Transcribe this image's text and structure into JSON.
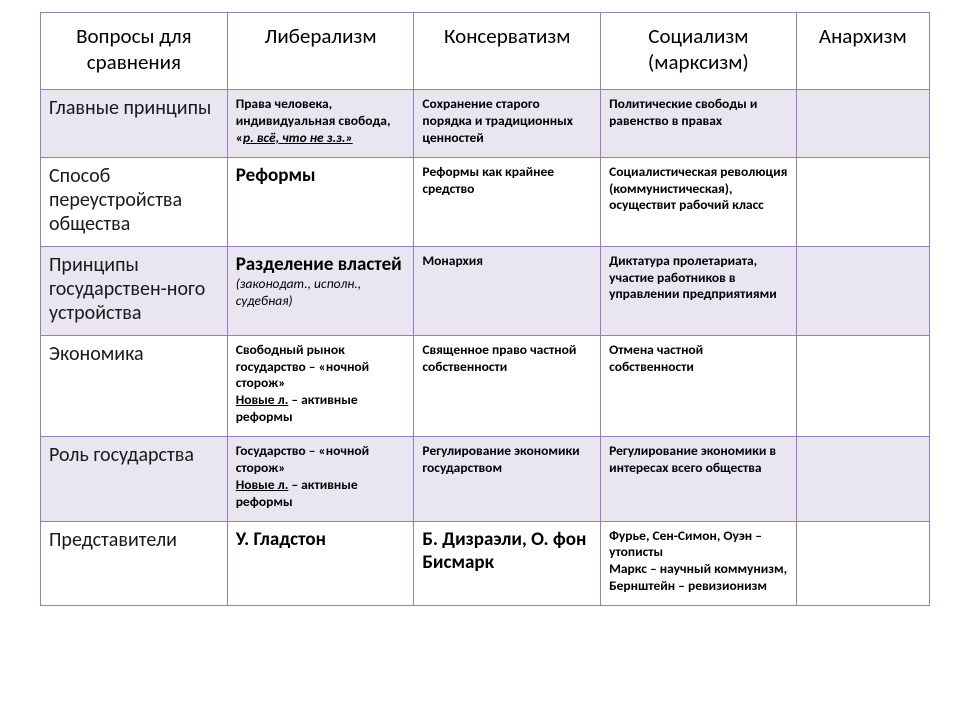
{
  "table": {
    "type": "table",
    "columns": [
      "Вопросы для сравнения",
      "Либерализм",
      "Консерватизм",
      "Социализм (марксизм)",
      "Анархизм"
    ],
    "column_widths_pct": [
      21,
      21,
      21,
      22,
      15
    ],
    "border_color": "#8f82b8",
    "band_color": "#e9e5f1",
    "background_color": "#ffffff",
    "header_fontsize": 21,
    "rowheader_fontsize": 20,
    "cell_fontsize": 13.5,
    "big_fontsize": 19,
    "rows": [
      {
        "band": true,
        "header": "Главные принципы",
        "liberalism": {
          "pref": "Права человека, индивидуальная свобода, «",
          "ital_u": "р. всё, что не з.з.»",
          "suf": ""
        },
        "conservatism": "Сохранение старого порядка и традиционных ценностей",
        "socialism": "Политические свободы и равенство в правах",
        "anarchism": ""
      },
      {
        "band": false,
        "header": "Способ переустройства общества",
        "liberalism_big": "Реформы",
        "conservatism": "Реформы как крайнее средство",
        "socialism": "Социалистическая революция (коммунистическая), осуществит рабочий класс",
        "anarchism": ""
      },
      {
        "band": true,
        "header": "Принципы государствен-ного устройства",
        "liberalism_big": "Разделение властей",
        "liberalism_sub": "(законодат., исполн., судебная)",
        "conservatism": "Монархия",
        "socialism": "Диктатура пролетариата, участие работников в управлении предприятиями",
        "anarchism": ""
      },
      {
        "band": false,
        "header": "Экономика",
        "liberalism": {
          "line1": "Свободный рынок государство – «ночной сторож»",
          "u": "Новые л.",
          "after": " – активные реформы"
        },
        "conservatism": "Священное право частной собственности",
        "socialism": "Отмена частной собственности",
        "anarchism": ""
      },
      {
        "band": true,
        "header": "Роль государства",
        "liberalism": {
          "line1": "Государство – «ночной сторож»",
          "u": "Новые л.",
          "after": " – активные реформы"
        },
        "conservatism": "Регулирование экономики государством",
        "socialism": "Регулирование экономики в интересах всего общества",
        "anarchism": ""
      },
      {
        "band": false,
        "header": "Представители",
        "liberalism_big": "У. Гладстон",
        "conservatism_big": "Б. Дизраэли, О. фон Бисмарк",
        "socialism": "Фурье, Сен-Симон, Оуэн – утописты\nМаркс – научный коммунизм, Бернштейн – ревизионизм",
        "anarchism": ""
      }
    ]
  }
}
